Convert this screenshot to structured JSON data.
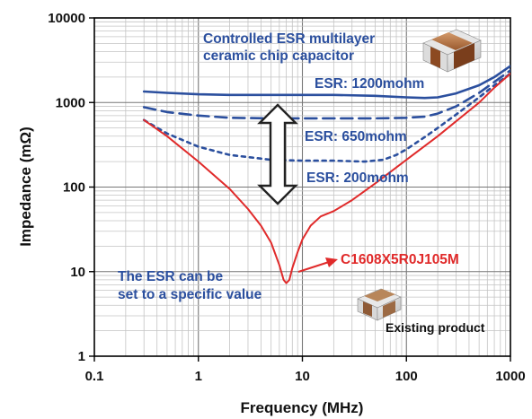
{
  "chart_data": {
    "type": "line",
    "xlabel": "Frequency (MHz)",
    "ylabel": "Impedance (mΩ)",
    "xscale": "log",
    "yscale": "log",
    "xlim": [
      0.1,
      1000
    ],
    "ylim": [
      1,
      10000
    ],
    "grid": true,
    "x_ticks": [
      "0.1",
      "1",
      "10",
      "100",
      "1000"
    ],
    "y_ticks": [
      "1",
      "10",
      "100",
      "1000",
      "10000"
    ],
    "series": [
      {
        "label": "ESR: 1200mohm",
        "color": "#2b4f9e",
        "style": "solid",
        "x": [
          0.3,
          0.5,
          1,
          2,
          5,
          10,
          20,
          50,
          100,
          150,
          200,
          300,
          500,
          700,
          1000
        ],
        "y": [
          1350,
          1300,
          1250,
          1230,
          1230,
          1230,
          1230,
          1200,
          1150,
          1130,
          1150,
          1280,
          1600,
          2000,
          2700
        ]
      },
      {
        "label": "ESR: 650mohm",
        "color": "#2b4f9e",
        "style": "dashed",
        "x": [
          0.3,
          0.5,
          1,
          2,
          5,
          10,
          20,
          50,
          100,
          150,
          200,
          300,
          500,
          700,
          1000
        ],
        "y": [
          880,
          770,
          700,
          660,
          650,
          650,
          650,
          650,
          660,
          680,
          740,
          900,
          1300,
          1750,
          2400
        ]
      },
      {
        "label": "ESR: 200mohm",
        "color": "#2b4f9e",
        "style": "dotted",
        "x": [
          0.3,
          0.5,
          1,
          2,
          5,
          10,
          20,
          40,
          60,
          80,
          100,
          150,
          200,
          300,
          500,
          700,
          1000
        ],
        "y": [
          620,
          430,
          300,
          240,
          210,
          205,
          205,
          200,
          210,
          240,
          280,
          390,
          500,
          720,
          1150,
          1600,
          2200
        ]
      },
      {
        "label": "C1608X5R0J105M",
        "color": "#e02a2a",
        "style": "solid",
        "x": [
          0.3,
          0.5,
          1,
          2,
          3,
          4,
          5,
          6,
          6.6,
          7,
          7.5,
          8,
          9,
          10,
          12,
          15,
          20,
          30,
          50,
          100,
          200,
          300,
          500,
          700,
          1000
        ],
        "y": [
          620,
          400,
          200,
          95,
          55,
          35,
          22,
          12,
          8,
          7.3,
          8,
          11,
          17,
          24,
          35,
          45,
          52,
          70,
          110,
          210,
          400,
          600,
          1000,
          1500,
          2200
        ]
      }
    ],
    "annotations": [
      {
        "text": "Controlled ESR multilayer",
        "color": "#2b4f9e"
      },
      {
        "text": "ceramic chip capacitor",
        "color": "#2b4f9e"
      },
      {
        "text": "ESR: 1200mohm",
        "color": "#2b4f9e"
      },
      {
        "text": "ESR: 650mohm",
        "color": "#2b4f9e"
      },
      {
        "text": "ESR: 200mohm",
        "color": "#2b4f9e"
      },
      {
        "text": "The ESR can be",
        "color": "#2b4f9e"
      },
      {
        "text": "set to a specific value",
        "color": "#2b4f9e"
      },
      {
        "text": "C1608X5R0J105M",
        "color": "#e02a2a"
      },
      {
        "text": "Existing product",
        "color": "#111111"
      }
    ]
  }
}
